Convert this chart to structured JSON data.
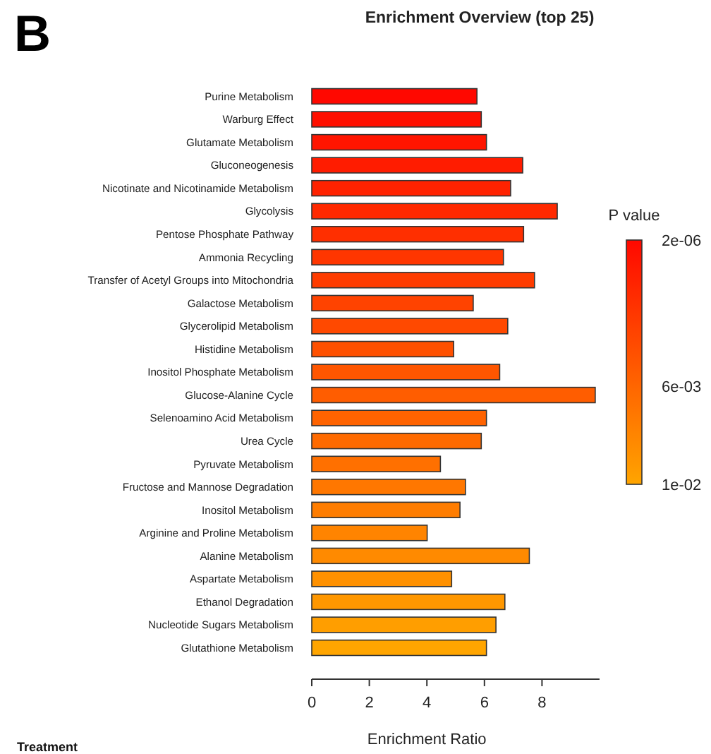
{
  "chart_data": {
    "type": "bar",
    "orientation": "horizontal",
    "title": "Enrichment Overview (top 25)",
    "xlabel": "Enrichment Ratio",
    "legend_title": "P value",
    "categories": [
      "Purine Metabolism",
      "Warburg Effect",
      "Glutamate Metabolism",
      "Gluconeogenesis",
      "Nicotinate and Nicotinamide Metabolism",
      "Glycolysis",
      "Pentose Phosphate Pathway",
      "Ammonia Recycling",
      "Transfer of Acetyl Groups into Mitochondria",
      "Galactose Metabolism",
      "Glycerolipid Metabolism",
      "Histidine Metabolism",
      "Inositol Phosphate Metabolism",
      "Glucose-Alanine Cycle",
      "Selenoamino Acid Metabolism",
      "Urea Cycle",
      "Pyruvate Metabolism",
      "Fructose and Mannose Degradation",
      "Inositol Metabolism",
      "Arginine and Proline Metabolism",
      "Alanine Metabolism",
      "Aspartate Metabolism",
      "Ethanol Degradation",
      "Nucleotide Sugars Metabolism",
      "Glutathione Metabolism"
    ],
    "values": [
      5.74,
      5.89,
      6.07,
      7.33,
      6.91,
      8.53,
      7.36,
      6.66,
      7.74,
      5.61,
      6.81,
      4.93,
      6.53,
      9.85,
      6.07,
      5.89,
      4.47,
      5.34,
      5.15,
      4.01,
      7.56,
      4.86,
      6.71,
      6.4,
      6.07
    ],
    "colors": [
      "#ff0800",
      "#ff0f00",
      "#ff1500",
      "#ff1c00",
      "#ff2200",
      "#ff2900",
      "#ff2f00",
      "#ff3600",
      "#ff3c00",
      "#ff4300",
      "#ff4900",
      "#ff5000",
      "#ff5600",
      "#ff5d00",
      "#ff6300",
      "#ff6a00",
      "#ff7000",
      "#ff7700",
      "#ff7d00",
      "#ff8400",
      "#ff8a00",
      "#ff9100",
      "#ff9700",
      "#ff9e00",
      "#ffa500"
    ],
    "xlim": [
      0,
      10
    ],
    "xticks": [
      0,
      2,
      4,
      6,
      8
    ],
    "clim": [
      0.01,
      2e-06
    ],
    "cticks": [
      {
        "value": 2e-06,
        "label": "2e-06"
      },
      {
        "value": 0.006,
        "label": "6e-03"
      },
      {
        "value": 0.01,
        "label": "1e-02"
      }
    ],
    "annotations": [
      "B",
      "Treatment"
    ]
  }
}
